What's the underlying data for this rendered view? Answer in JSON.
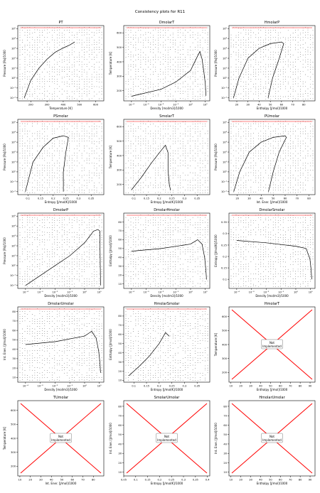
{
  "figure": {
    "title": "Consistency plots for R11"
  },
  "colors": {
    "curve": "#000000",
    "boundary": "#ff0000",
    "grid_points": "#000000",
    "axes": "#000000"
  },
  "not_implemented_label": [
    "Not",
    "Implemented"
  ],
  "chart_data": [
    {
      "type": "scatter",
      "title": "PT",
      "xlabel": "Temperature [K]",
      "ylabel": "Pressure [Pa]/1000",
      "xscale": "linear",
      "yscale": "log",
      "xlim": [
        120,
        650
      ],
      "ylim": [
        0.005,
        200000
      ],
      "xticks": [
        200,
        300,
        400,
        500,
        600
      ],
      "yticks": [
        0.01,
        0.1,
        1,
        10,
        100,
        1000,
        10000,
        100000
      ],
      "curve": [
        [
          160,
          0.01
        ],
        [
          200,
          0.6
        ],
        [
          250,
          10
        ],
        [
          300,
          80
        ],
        [
          350,
          400
        ],
        [
          400,
          1100
        ],
        [
          440,
          2200
        ],
        [
          471,
          4400
        ]
      ],
      "note": "dense grid of consistency points over T 160-640 K; red boundary at max temperature"
    },
    {
      "type": "scatter",
      "title": "DmolarT",
      "xlabel": "Density [mol/m3]/1000",
      "ylabel": "Temperature [K]",
      "xscale": "log",
      "yscale": "linear",
      "xlim": [
        3e-05,
        20
      ],
      "ylim": [
        130,
        650
      ],
      "xticks": [
        0.0001,
        0.001,
        0.01,
        0.1,
        1,
        10
      ],
      "yticks": [
        200,
        300,
        400,
        500,
        600
      ],
      "curve": [
        [
          0.0001,
          162
        ],
        [
          0.01,
          210
        ],
        [
          0.1,
          260
        ],
        [
          1,
          340
        ],
        [
          3,
          440
        ],
        [
          4.3,
          471
        ],
        [
          6,
          420
        ],
        [
          8,
          330
        ],
        [
          10,
          250
        ],
        [
          11,
          165
        ]
      ],
      "note": "saturation dome; red boundary at max temperature"
    },
    {
      "type": "scatter",
      "title": "HmolarP",
      "xlabel": "Enthalpy [J/mol]/1000",
      "ylabel": "Pressure [Pa]/1000",
      "xscale": "linear",
      "yscale": "log",
      "xlim": [
        13,
        90
      ],
      "ylim": [
        0.005,
        200000
      ],
      "xticks": [
        20,
        30,
        40,
        50,
        60,
        70,
        80
      ],
      "yticks": [
        0.01,
        0.1,
        1,
        10,
        100,
        1000,
        10000,
        100000
      ],
      "curve": [
        [
          17,
          0.01
        ],
        [
          22,
          1
        ],
        [
          30,
          100
        ],
        [
          40,
          1000
        ],
        [
          50,
          3000
        ],
        [
          60,
          4400
        ],
        [
          62,
          3000
        ],
        [
          58,
          100
        ],
        [
          52,
          1
        ],
        [
          48,
          0.01
        ]
      ],
      "note": "saturation dome; red boundary at max enthalpy"
    },
    {
      "type": "scatter",
      "title": "PSmolar",
      "xlabel": "Entropy [J/mol/K]/1000",
      "ylabel": "Pressure [Pa]/1000",
      "xscale": "linear",
      "yscale": "log",
      "xlim": [
        0.06,
        0.4
      ],
      "ylim": [
        0.005,
        200000
      ],
      "xticks": [
        0.1,
        0.15,
        0.2,
        0.25,
        0.3,
        0.35
      ],
      "yticks": [
        0.01,
        0.1,
        1,
        10,
        100,
        1000,
        10000,
        100000
      ],
      "curve": [
        [
          0.09,
          0.01
        ],
        [
          0.12,
          10
        ],
        [
          0.16,
          300
        ],
        [
          0.2,
          2500
        ],
        [
          0.24,
          4400
        ],
        [
          0.26,
          3000
        ],
        [
          0.25,
          100
        ],
        [
          0.24,
          1
        ],
        [
          0.24,
          0.01
        ]
      ],
      "note": "saturation dome; red boundary along high-entropy edge"
    },
    {
      "type": "scatter",
      "title": "SmolarT",
      "xlabel": "Entropy [J/mol/K]/1000",
      "ylabel": "Temperature [K]",
      "xscale": "linear",
      "yscale": "linear",
      "xlim": [
        0.06,
        0.4
      ],
      "ylim": [
        130,
        650
      ],
      "xticks": [
        0.1,
        0.15,
        0.2,
        0.25,
        0.3,
        0.35
      ],
      "yticks": [
        200,
        300,
        400,
        500,
        600
      ],
      "curve": [
        [
          0.09,
          162
        ],
        [
          0.13,
          250
        ],
        [
          0.17,
          350
        ],
        [
          0.21,
          440
        ],
        [
          0.225,
          471
        ],
        [
          0.235,
          420
        ],
        [
          0.235,
          300
        ],
        [
          0.24,
          200
        ],
        [
          0.245,
          162
        ]
      ],
      "note": "saturation dome; red boundary at max temperature"
    },
    {
      "type": "scatter",
      "title": "PUmolar",
      "xlabel": "Int. Ener. [J/mol]/1000",
      "ylabel": "Pressure [Pa]/1000",
      "xscale": "linear",
      "yscale": "log",
      "xlim": [
        13,
        85
      ],
      "ylim": [
        0.005,
        200000
      ],
      "xticks": [
        20,
        30,
        40,
        50,
        60,
        70,
        80
      ],
      "yticks": [
        0.01,
        0.1,
        1,
        10,
        100,
        1000,
        10000,
        100000
      ],
      "curve": [
        [
          17,
          0.01
        ],
        [
          22,
          1
        ],
        [
          30,
          100
        ],
        [
          40,
          1000
        ],
        [
          50,
          3000
        ],
        [
          60,
          4400
        ],
        [
          61,
          3000
        ],
        [
          55,
          100
        ],
        [
          50,
          1
        ],
        [
          46,
          0.01
        ]
      ],
      "note": "saturation dome; red boundary at max internal energy"
    },
    {
      "type": "scatter",
      "title": "DmolarP",
      "xlabel": "Density [mol/m3]/1000",
      "ylabel": "Pressure [Pa]/1000",
      "xscale": "log",
      "yscale": "log",
      "xlim": [
        3e-05,
        20
      ],
      "ylim": [
        0.005,
        200000
      ],
      "xticks": [
        0.0001,
        0.001,
        0.01,
        0.1,
        1,
        10
      ],
      "yticks": [
        0.01,
        0.1,
        1,
        10,
        100,
        1000,
        10000,
        100000
      ],
      "curve": [
        [
          0.0001,
          0.01
        ],
        [
          0.001,
          0.1
        ],
        [
          0.01,
          1
        ],
        [
          0.1,
          10
        ],
        [
          1,
          200
        ],
        [
          4,
          3000
        ],
        [
          8,
          4400
        ],
        [
          11,
          3000
        ],
        [
          11,
          100
        ],
        [
          12,
          0.01
        ]
      ],
      "note": "diagonal ideal-gas region with dense liquid branch; red boundary at high density"
    },
    {
      "type": "scatter",
      "title": "DmolarHmolar",
      "xlabel": "Density [mol/m3]/1000",
      "ylabel": "Enthalpy [J/mol]/1000",
      "xscale": "log",
      "yscale": "linear",
      "xlim": [
        3e-05,
        20
      ],
      "ylim": [
        5,
        90
      ],
      "xticks": [
        0.0001,
        0.001,
        0.01,
        0.1,
        1,
        10
      ],
      "yticks": [
        10,
        20,
        30,
        40,
        50,
        60,
        70,
        80
      ],
      "curve": [
        [
          0.0001,
          47
        ],
        [
          0.01,
          50
        ],
        [
          1,
          55
        ],
        [
          3,
          60
        ],
        [
          6,
          55
        ],
        [
          9,
          40
        ],
        [
          11,
          25
        ],
        [
          12,
          15
        ]
      ],
      "note": "isotherm fan lines; red boundary along top"
    },
    {
      "type": "scatter",
      "title": "DmolarSmolar",
      "xlabel": "Density [mol/m3]/1000",
      "ylabel": "Entropy [J/mol/K]/1000",
      "xscale": "log",
      "yscale": "linear",
      "xlim": [
        3e-05,
        20
      ],
      "ylim": [
        0.06,
        0.39
      ],
      "xticks": [
        0.0001,
        0.001,
        0.01,
        0.1,
        1,
        10
      ],
      "yticks": [
        0.1,
        0.15,
        0.2,
        0.25,
        0.3,
        0.35
      ],
      "curve": [
        [
          0.0001,
          0.27
        ],
        [
          0.01,
          0.26
        ],
        [
          1,
          0.245
        ],
        [
          5,
          0.235
        ],
        [
          9,
          0.19
        ],
        [
          11,
          0.14
        ],
        [
          12,
          0.1
        ]
      ],
      "note": "isobar fan lines converging at high density"
    },
    {
      "type": "scatter",
      "title": "DmolarUmolar",
      "xlabel": "Density [mol/m3]/1000",
      "ylabel": "Int. Ener. [J/mol]/1000",
      "xscale": "log",
      "yscale": "linear",
      "xlim": [
        3e-05,
        20
      ],
      "ylim": [
        5,
        85
      ],
      "xticks": [
        0.0001,
        0.001,
        0.01,
        0.1,
        1,
        10
      ],
      "yticks": [
        10,
        20,
        30,
        40,
        50,
        60,
        70,
        80
      ],
      "curve": [
        [
          0.0001,
          45
        ],
        [
          0.01,
          48
        ],
        [
          1,
          54
        ],
        [
          3,
          59
        ],
        [
          6,
          52
        ],
        [
          9,
          38
        ],
        [
          11,
          25
        ],
        [
          12,
          15
        ]
      ],
      "note": "isotherm fan lines; red boundary along top"
    },
    {
      "type": "scatter",
      "title": "HmolarSmolar",
      "xlabel": "Entropy [J/mol/K]/1000",
      "ylabel": "Enthalpy [J/mol]/1000",
      "xscale": "linear",
      "yscale": "linear",
      "xlim": [
        0.06,
        0.4
      ],
      "ylim": [
        8,
        90
      ],
      "xticks": [
        0.1,
        0.15,
        0.2,
        0.25,
        0.3,
        0.35
      ],
      "yticks": [
        10,
        20,
        30,
        40,
        50,
        60,
        70,
        80
      ],
      "curve": [
        [
          0.08,
          15
        ],
        [
          0.12,
          25
        ],
        [
          0.16,
          36
        ],
        [
          0.2,
          50
        ],
        [
          0.225,
          62
        ],
        [
          0.24,
          58
        ]
      ],
      "note": "red points along low-enthalpy edge and top boundary"
    },
    {
      "type": "scatter",
      "title": "HmolarT",
      "xlabel": "Enthalpy [J/mol]/1000",
      "ylabel": "Temperature [K]",
      "xscale": "linear",
      "yscale": "linear",
      "xlim": [
        8,
        95
      ],
      "ylim": [
        130,
        670
      ],
      "xticks": [
        10,
        20,
        30,
        40,
        50,
        60,
        70,
        80,
        90
      ],
      "yticks": [
        200,
        300,
        400,
        500,
        600
      ],
      "not_implemented": true
    },
    {
      "type": "scatter",
      "title": "TUmolar",
      "xlabel": "Int. Ener. [J/mol]/1000",
      "ylabel": "Temperature [K]",
      "xscale": "linear",
      "yscale": "linear",
      "xlim": [
        8,
        90
      ],
      "ylim": [
        130,
        670
      ],
      "xticks": [
        10,
        20,
        30,
        40,
        50,
        60,
        70,
        80
      ],
      "yticks": [
        200,
        300,
        400,
        500,
        600
      ],
      "not_implemented": true
    },
    {
      "type": "scatter",
      "title": "SmolarUmolar",
      "xlabel": "Entropy [J/mol/K]/1000",
      "ylabel": "Int. Ener. [J/mol]/1000",
      "xscale": "linear",
      "yscale": "linear",
      "xlim": [
        0.05,
        0.41
      ],
      "ylim": [
        6,
        86
      ],
      "xticks": [
        0.05,
        0.1,
        0.15,
        0.2,
        0.25,
        0.3,
        0.35,
        0.4
      ],
      "yticks": [
        10,
        20,
        30,
        40,
        50,
        60,
        70,
        80
      ],
      "not_implemented": true
    },
    {
      "type": "scatter",
      "title": "HmolarUmolar",
      "xlabel": "Enthalpy [J/mol]/1000",
      "ylabel": "Int. Ener. [J/mol]/1000",
      "xscale": "linear",
      "yscale": "linear",
      "xlim": [
        8,
        95
      ],
      "ylim": [
        6,
        86
      ],
      "xticks": [
        10,
        20,
        30,
        40,
        50,
        60,
        70,
        80,
        90
      ],
      "yticks": [
        10,
        20,
        30,
        40,
        50,
        60,
        70,
        80
      ],
      "not_implemented": true
    }
  ]
}
